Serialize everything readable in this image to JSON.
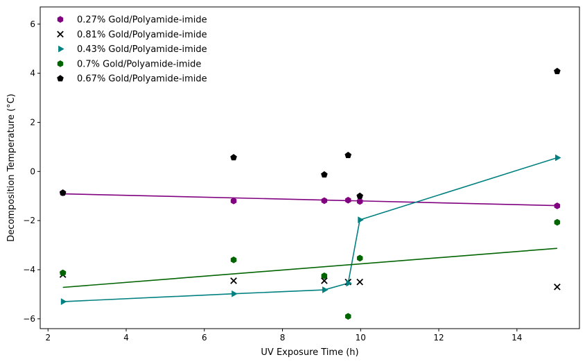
{
  "chart_data": {
    "type": "scatter",
    "xlabel": "UV Exposure Time (h)",
    "ylabel": "Decomposition Temperature (°C)",
    "xlim": [
      1.8,
      15.6
    ],
    "ylim": [
      -6.4,
      6.7
    ],
    "xticks": [
      2,
      4,
      6,
      8,
      10,
      12,
      14
    ],
    "yticks": [
      -6,
      -4,
      -2,
      0,
      2,
      4,
      6
    ],
    "legend_position": "upper-left",
    "grid": false,
    "series": [
      {
        "name": "0.27% Gold/Polyamide-imide",
        "marker": "hexagon",
        "color": "#800080",
        "x": [
          2.38,
          6.75,
          9.07,
          9.68,
          9.98,
          15.03
        ],
        "y": [
          -0.87,
          -1.2,
          -1.19,
          -1.17,
          -1.22,
          -1.4
        ],
        "fit": {
          "style": "linear",
          "x": [
            2.38,
            15.03
          ],
          "y": [
            -0.91,
            -1.39
          ]
        }
      },
      {
        "name": "0.81% Gold/Polyamide-imide",
        "marker": "x",
        "color": "#000000",
        "x": [
          2.38,
          6.75,
          9.07,
          9.68,
          9.98,
          15.03
        ],
        "y": [
          -4.2,
          -4.45,
          -4.45,
          -4.5,
          -4.5,
          -4.7
        ]
      },
      {
        "name": "0.43% Gold/Polyamide-imide",
        "marker": "triangle-right",
        "color": "#008080",
        "x": [
          2.38,
          6.75,
          9.07,
          9.68,
          9.98,
          15.03
        ],
        "y": [
          -5.3,
          -4.98,
          -4.82,
          -4.55,
          -1.97,
          0.56
        ],
        "fit": {
          "style": "connect",
          "x": [
            2.38,
            6.75,
            9.07,
            9.68,
            9.98,
            15.03
          ],
          "y": [
            -5.3,
            -4.98,
            -4.82,
            -4.55,
            -1.97,
            0.56
          ]
        }
      },
      {
        "name": "0.7% Gold/Polyamide-imide",
        "marker": "hexagon",
        "color": "#006400",
        "x": [
          2.38,
          6.75,
          9.07,
          9.68,
          9.98,
          15.03
        ],
        "y": [
          -4.13,
          -3.6,
          -4.25,
          -5.9,
          -3.53,
          -2.07
        ],
        "fit": {
          "style": "linear",
          "x": [
            2.38,
            15.03
          ],
          "y": [
            -4.72,
            -3.13
          ]
        }
      },
      {
        "name": "0.67% Gold/Polyamide-imide",
        "marker": "pentagon",
        "color": "#000000",
        "x": [
          2.38,
          6.75,
          9.07,
          9.68,
          9.98,
          15.03
        ],
        "y": [
          -0.87,
          0.57,
          -0.13,
          0.66,
          -1.0,
          4.08
        ]
      }
    ]
  }
}
